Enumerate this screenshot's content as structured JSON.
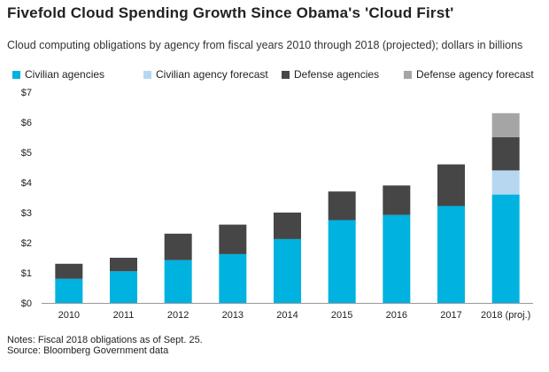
{
  "title": "Fivefold Cloud Spending Growth Since Obama's 'Cloud First'",
  "subtitle": "Cloud computing obligations by agency from fiscal years 2010 through 2018 (projected); dollars in billions",
  "notes": "Notes: Fiscal 2018 obligations as of Sept. 25.",
  "source": "Source: Bloomberg Government data",
  "colors": {
    "civilian": "#00b2e0",
    "civilian_forecast": "#b7d7f0",
    "defense": "#464646",
    "defense_forecast": "#a5a5a5"
  },
  "chart_data": {
    "type": "bar",
    "stacked": true,
    "categories": [
      "2010",
      "2011",
      "2012",
      "2013",
      "2014",
      "2015",
      "2016",
      "2017",
      "2018 (proj.)"
    ],
    "series": [
      {
        "name": "Civilian agencies",
        "values": [
          0.8,
          1.05,
          1.42,
          1.62,
          2.12,
          2.75,
          2.92,
          3.22,
          3.6
        ]
      },
      {
        "name": "Civilian agency forecast",
        "values": [
          0,
          0,
          0,
          0,
          0,
          0,
          0,
          0,
          0.8
        ]
      },
      {
        "name": "Defense agencies",
        "values": [
          0.5,
          0.45,
          0.88,
          0.98,
          0.88,
          0.95,
          0.98,
          1.38,
          1.1
        ]
      },
      {
        "name": "Defense agency forecast",
        "values": [
          0,
          0,
          0,
          0,
          0,
          0,
          0,
          0,
          0.8
        ]
      }
    ],
    "y_ticks": [
      "$0",
      "$1",
      "$2",
      "$3",
      "$4",
      "$5",
      "$6",
      "$7"
    ],
    "ylim": [
      0,
      7
    ],
    "xlabel": "",
    "ylabel": "",
    "grid": false,
    "legend_position": "top"
  }
}
